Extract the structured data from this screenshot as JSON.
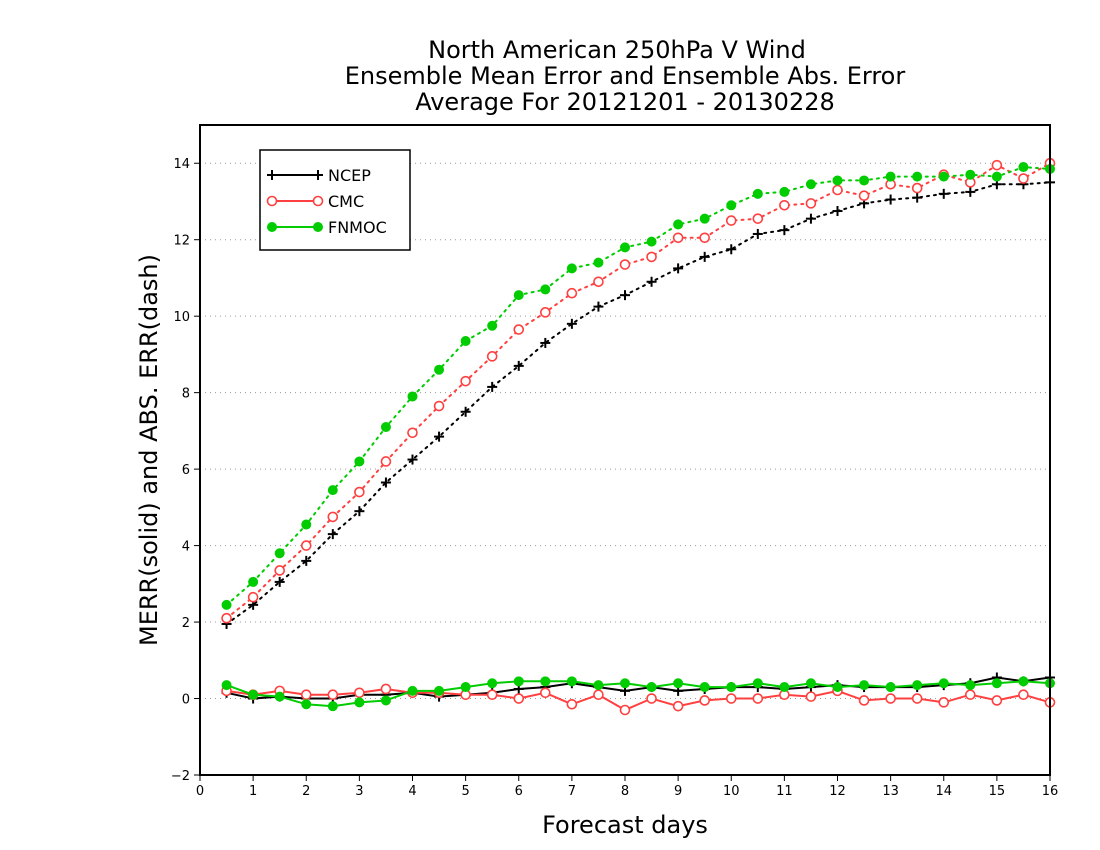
{
  "chart_data": {
    "type": "line",
    "title_lines": [
      "North American 250hPa V Wind",
      "Ensemble Mean Error and Ensemble Abs. Error",
      "Average For 20121201 - 20130228"
    ],
    "xlabel": "Forecast days",
    "ylabel": "MERR(solid) and ABS. ERR(dash)",
    "xlim": [
      0,
      16
    ],
    "ylim": [
      -2,
      15
    ],
    "xticks": [
      0,
      1,
      2,
      3,
      4,
      5,
      6,
      7,
      8,
      9,
      10,
      11,
      12,
      13,
      14,
      15,
      16
    ],
    "yticks": [
      -2,
      0,
      2,
      4,
      6,
      8,
      10,
      12,
      14
    ],
    "grid": "horizontal dotted",
    "legend_position": "top-left",
    "x": [
      0.5,
      1,
      1.5,
      2,
      2.5,
      3,
      3.5,
      4,
      4.5,
      5,
      5.5,
      6,
      6.5,
      7,
      7.5,
      8,
      8.5,
      9,
      9.5,
      10,
      10.5,
      11,
      11.5,
      12,
      12.5,
      13,
      13.5,
      14,
      14.5,
      15,
      15.5,
      16
    ],
    "series": [
      {
        "name": "NCEP",
        "color": "#000000",
        "marker": "plus",
        "abs_err": [
          1.95,
          2.45,
          3.05,
          3.6,
          4.3,
          4.9,
          5.65,
          6.25,
          6.85,
          7.5,
          8.15,
          8.7,
          9.3,
          9.8,
          10.25,
          10.55,
          10.9,
          11.25,
          11.55,
          11.75,
          12.15,
          12.25,
          12.55,
          12.75,
          12.95,
          13.05,
          13.1,
          13.2,
          13.25,
          13.45,
          13.45,
          13.5
        ],
        "mean_err": [
          0.15,
          0.0,
          0.05,
          0.0,
          0.0,
          0.1,
          0.1,
          0.15,
          0.05,
          0.1,
          0.15,
          0.25,
          0.3,
          0.4,
          0.3,
          0.2,
          0.3,
          0.2,
          0.25,
          0.3,
          0.3,
          0.25,
          0.3,
          0.35,
          0.3,
          0.3,
          0.3,
          0.35,
          0.4,
          0.55,
          0.45,
          0.55
        ]
      },
      {
        "name": "CMC",
        "color": "#ff4040",
        "marker": "circle-open",
        "abs_err": [
          2.1,
          2.65,
          3.35,
          4.0,
          4.75,
          5.4,
          6.2,
          6.95,
          7.65,
          8.3,
          8.95,
          9.65,
          10.1,
          10.6,
          10.9,
          11.35,
          11.55,
          12.05,
          12.05,
          12.5,
          12.55,
          12.9,
          12.95,
          13.3,
          13.15,
          13.45,
          13.35,
          13.7,
          13.5,
          13.95,
          13.6,
          14.0
        ],
        "mean_err": [
          0.2,
          0.1,
          0.2,
          0.1,
          0.1,
          0.15,
          0.25,
          0.15,
          0.15,
          0.1,
          0.1,
          0.0,
          0.15,
          -0.15,
          0.1,
          -0.3,
          0.0,
          -0.2,
          -0.05,
          0.0,
          0.0,
          0.1,
          0.05,
          0.2,
          -0.05,
          0.0,
          0.0,
          -0.1,
          0.1,
          -0.05,
          0.1,
          -0.1
        ]
      },
      {
        "name": "FNMOC",
        "color": "#00cc00",
        "marker": "circle-filled",
        "abs_err": [
          2.45,
          3.05,
          3.8,
          4.55,
          5.45,
          6.2,
          7.1,
          7.9,
          8.6,
          9.35,
          9.75,
          10.55,
          10.7,
          11.25,
          11.4,
          11.8,
          11.95,
          12.4,
          12.55,
          12.9,
          13.2,
          13.25,
          13.45,
          13.55,
          13.55,
          13.65,
          13.65,
          13.65,
          13.7,
          13.65,
          13.9,
          13.85
        ],
        "mean_err": [
          0.35,
          0.1,
          0.05,
          -0.15,
          -0.2,
          -0.1,
          -0.05,
          0.2,
          0.2,
          0.3,
          0.4,
          0.45,
          0.45,
          0.45,
          0.35,
          0.4,
          0.3,
          0.4,
          0.3,
          0.3,
          0.4,
          0.3,
          0.4,
          0.3,
          0.35,
          0.3,
          0.35,
          0.4,
          0.35,
          0.4,
          0.45,
          0.4
        ]
      }
    ]
  }
}
